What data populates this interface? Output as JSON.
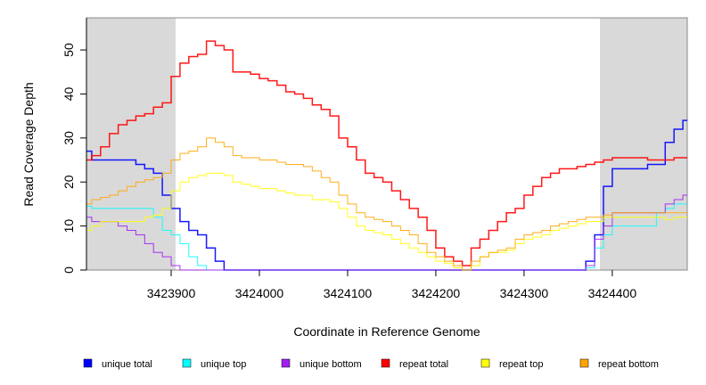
{
  "chart_data": {
    "type": "line",
    "title": "",
    "xlabel": "Coordinate in Reference Genome",
    "ylabel": "Read Coverage Depth",
    "xlim": [
      3423804,
      3424485
    ],
    "ylim": [
      0,
      57
    ],
    "xticks": [
      3423900,
      3424000,
      3424100,
      3424200,
      3424300,
      3424400
    ],
    "xtick_labels": [
      "3423900",
      "3424000",
      "3424100",
      "3424200",
      "3424300",
      "3424400"
    ],
    "yticks": [
      0,
      10,
      20,
      30,
      40,
      50
    ],
    "ytick_labels": [
      "0",
      "10",
      "20",
      "30",
      "40",
      "50"
    ],
    "shaded_regions": [
      [
        3423804,
        3423905
      ],
      [
        3424386,
        3424485
      ]
    ],
    "shade_color": "#d9d9d9",
    "legend_position": "bottom",
    "x": [
      3423805,
      3423815,
      3423825,
      3423835,
      3423845,
      3423855,
      3423865,
      3423875,
      3423885,
      3423895,
      3423905,
      3423915,
      3423925,
      3423935,
      3423945,
      3423955,
      3423965,
      3423975,
      3423985,
      3423995,
      3424005,
      3424015,
      3424025,
      3424035,
      3424045,
      3424055,
      3424065,
      3424075,
      3424085,
      3424095,
      3424105,
      3424115,
      3424125,
      3424135,
      3424145,
      3424155,
      3424165,
      3424175,
      3424185,
      3424195,
      3424205,
      3424215,
      3424225,
      3424235,
      3424245,
      3424255,
      3424265,
      3424275,
      3424285,
      3424295,
      3424305,
      3424315,
      3424325,
      3424335,
      3424345,
      3424355,
      3424365,
      3424375,
      3424385,
      3424395,
      3424405,
      3424415,
      3424425,
      3424435,
      3424445,
      3424455,
      3424465,
      3424475,
      3424485
    ],
    "series": [
      {
        "name": "unique total",
        "color": "#0000ff",
        "width": 1.5,
        "values": [
          27,
          25,
          25,
          25,
          25,
          25,
          24,
          23,
          22,
          17,
          14,
          11,
          9,
          8,
          5,
          2,
          0,
          0,
          0,
          0,
          0,
          0,
          0,
          0,
          0,
          0,
          0,
          0,
          0,
          0,
          0,
          0,
          0,
          0,
          0,
          0,
          0,
          0,
          0,
          0,
          0,
          0,
          0,
          0,
          0,
          0,
          0,
          0,
          0,
          0,
          0,
          0,
          0,
          0,
          0,
          0,
          0,
          2,
          8,
          19,
          23,
          23,
          23,
          23,
          24,
          24,
          29,
          32,
          34
        ]
      },
      {
        "name": "unique top",
        "color": "#00ffff",
        "width": 1,
        "values": [
          14.5,
          14,
          14,
          14,
          14,
          14,
          14,
          14,
          12,
          9,
          8,
          6,
          3,
          1,
          0,
          0,
          0,
          0,
          0,
          0,
          0,
          0,
          0,
          0,
          0,
          0,
          0,
          0,
          0,
          0,
          0,
          0,
          0,
          0,
          0,
          0,
          0,
          0,
          0,
          0,
          0,
          0,
          0,
          0,
          0,
          0,
          0,
          0,
          0,
          0,
          0,
          0,
          0,
          0,
          0,
          0,
          0,
          0.5,
          5,
          8,
          10,
          10,
          10,
          10,
          10,
          13,
          14,
          15,
          15
        ]
      },
      {
        "name": "unique bottom",
        "color": "#a020f0",
        "width": 1,
        "values": [
          12,
          11,
          11,
          11,
          10,
          9,
          8,
          6,
          4,
          3,
          1,
          0,
          0,
          0,
          0,
          0,
          0,
          0,
          0,
          0,
          0,
          0,
          0,
          0,
          0,
          0,
          0,
          0,
          0,
          0,
          0,
          0,
          0,
          0,
          0,
          0,
          0,
          0,
          0,
          0,
          0,
          0,
          0,
          0,
          0,
          0,
          0,
          0,
          0,
          0,
          0,
          0,
          0,
          0,
          0,
          0,
          0,
          1,
          7,
          10,
          13,
          13,
          13,
          13,
          13,
          13,
          15,
          16,
          17
        ]
      },
      {
        "name": "repeat total",
        "color": "#ff0000",
        "width": 1.5,
        "values": [
          25,
          26,
          28,
          31,
          33,
          34,
          35,
          35.5,
          37,
          38,
          44,
          47,
          48.5,
          49,
          52,
          51,
          50,
          45,
          45,
          44.5,
          43.5,
          43,
          42,
          40.5,
          40,
          39,
          37.5,
          36.5,
          35,
          30,
          28,
          25,
          22,
          21,
          20,
          18,
          16,
          14,
          12,
          9,
          5,
          3,
          2,
          1,
          5,
          7,
          9,
          11,
          13,
          14,
          17,
          19,
          21,
          22,
          23,
          23,
          23.5,
          24,
          24.5,
          25,
          25.5,
          25.5,
          25.5,
          25.5,
          25,
          25,
          25,
          25.5,
          25.5
        ]
      },
      {
        "name": "repeat top",
        "color": "#ffff00",
        "width": 1,
        "values": [
          9,
          10,
          11,
          11,
          11,
          11,
          11,
          12,
          12.5,
          14,
          18,
          20,
          21,
          21.5,
          22,
          22,
          21.5,
          20,
          19.5,
          19,
          18.5,
          18.5,
          18,
          17.5,
          17,
          17,
          16,
          16,
          15.5,
          14,
          12,
          10,
          9,
          8.5,
          8,
          7,
          6,
          5,
          4,
          3,
          2,
          1.5,
          0.5,
          0,
          1,
          3,
          4,
          4,
          4.5,
          6,
          7,
          7.5,
          8,
          9,
          9.5,
          10,
          10.5,
          11,
          11,
          12,
          12,
          12,
          12,
          12,
          12,
          12,
          11.5,
          12,
          12
        ]
      },
      {
        "name": "repeat bottom",
        "color": "#ffa500",
        "width": 1,
        "values": [
          15,
          16,
          16.5,
          17,
          18,
          19,
          20,
          20.5,
          21,
          22,
          25,
          26.5,
          27,
          28,
          30,
          29,
          28,
          26,
          25.5,
          25.5,
          25,
          25,
          24.5,
          24,
          24,
          23.5,
          22.5,
          21,
          20,
          17,
          15,
          13,
          12,
          11.5,
          11,
          10,
          9,
          8,
          6,
          4,
          3,
          2,
          1,
          0,
          2,
          3,
          4,
          4.5,
          5,
          7,
          8,
          8.5,
          9,
          10,
          10.5,
          11,
          11.5,
          12,
          12,
          12.5,
          13,
          13,
          13,
          13,
          13,
          13,
          13,
          13,
          13
        ]
      }
    ]
  }
}
